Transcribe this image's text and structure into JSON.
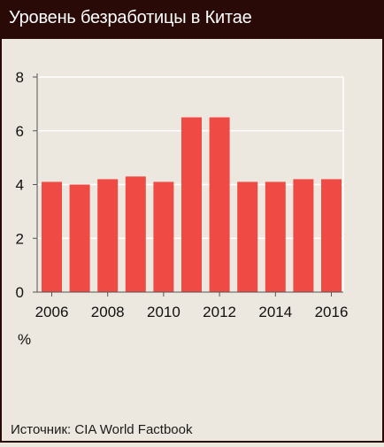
{
  "title": "Уровень безработицы в Китае",
  "source": "Источник: CIA World Factbook",
  "colors": {
    "header_bg": "#2a0a06",
    "bar": "#f04a45",
    "background": "#ece7df",
    "grid": "#ffffff",
    "axis": "#555555"
  },
  "chart_data": {
    "type": "bar",
    "categories": [
      "2006",
      "2007",
      "2008",
      "2009",
      "2010",
      "2011",
      "2012",
      "2013",
      "2014",
      "2015",
      "2016"
    ],
    "values": [
      4.1,
      4.0,
      4.2,
      4.3,
      4.1,
      6.5,
      6.5,
      4.1,
      4.1,
      4.2,
      4.2
    ],
    "x_tick_labels": [
      "2006",
      "2008",
      "2010",
      "2012",
      "2014",
      "2016"
    ],
    "y_ticks": [
      0,
      2,
      4,
      6,
      8
    ],
    "ylim": [
      0,
      8
    ],
    "ylabel": "%",
    "grid": true
  }
}
